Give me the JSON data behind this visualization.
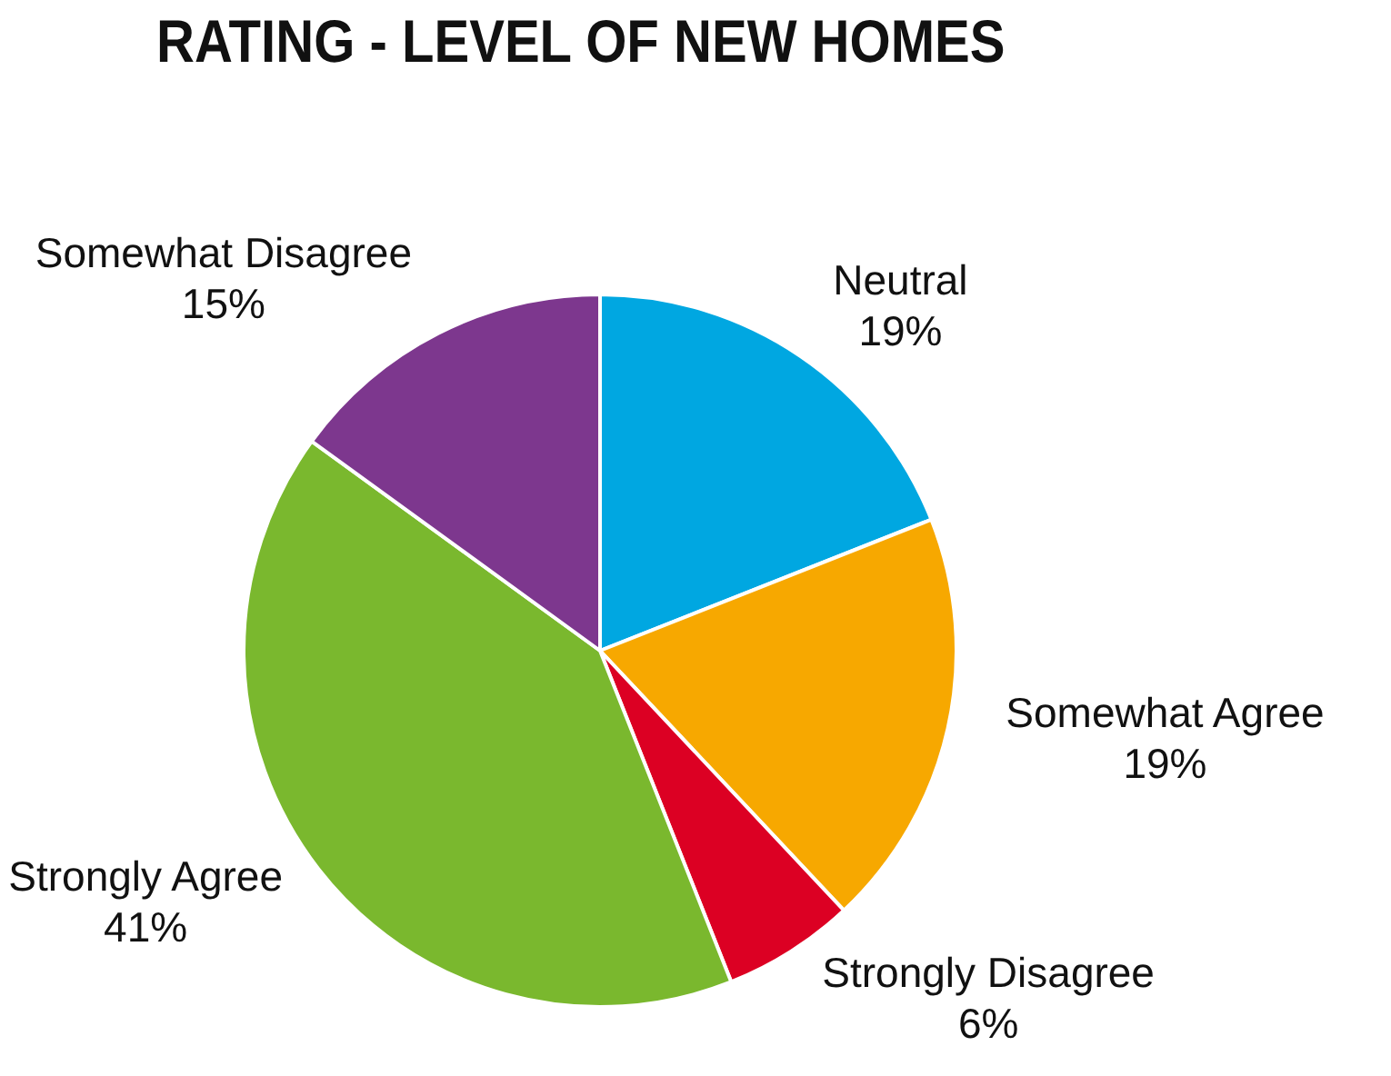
{
  "chart_data": {
    "type": "pie",
    "title": "RATING - LEVEL OF NEW HOMES",
    "categories": [
      "Neutral",
      "Somewhat Agree",
      "Strongly Disagree",
      "Strongly Agree",
      "Somewhat Disagree"
    ],
    "values": [
      19,
      19,
      6,
      41,
      15
    ],
    "colors": [
      "#00a7e1",
      "#f7a800",
      "#dc0023",
      "#7ab82e",
      "#7d378e"
    ],
    "value_labels": [
      "19%",
      "19%",
      "6%",
      "41%",
      "15%"
    ],
    "legend": false
  }
}
